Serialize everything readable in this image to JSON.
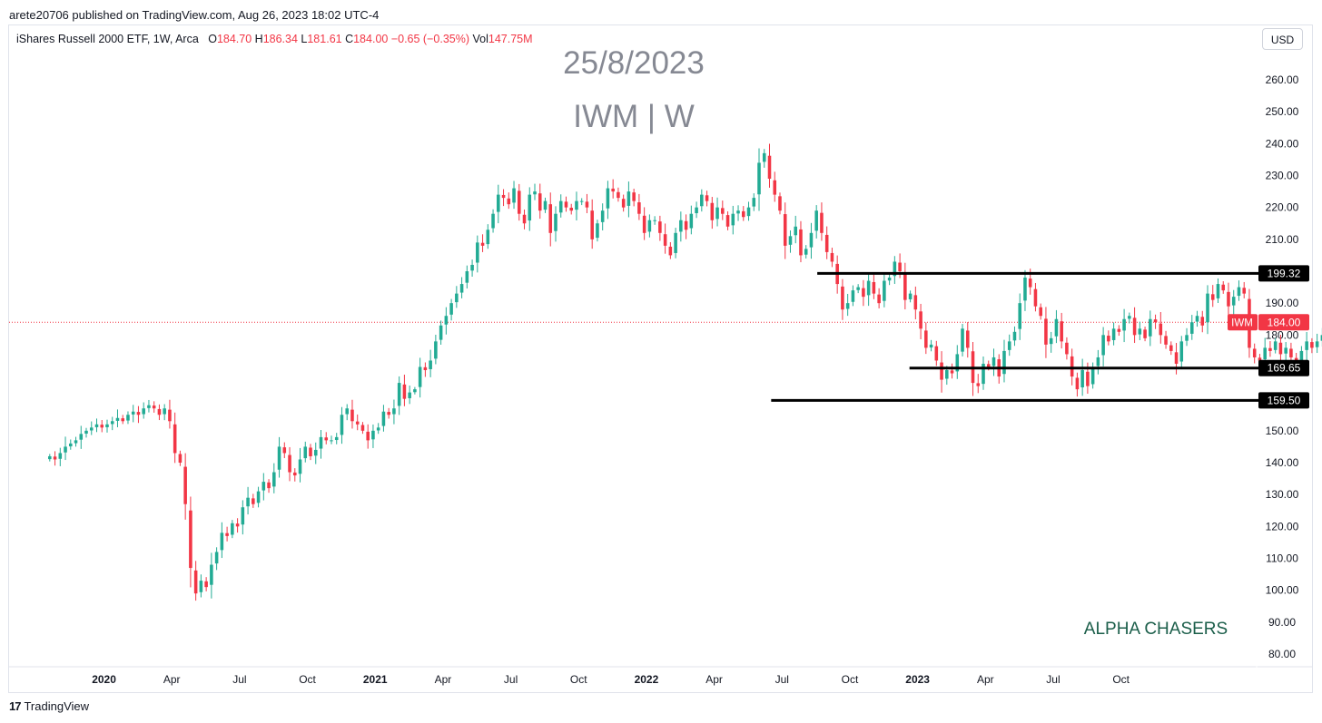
{
  "publish_line": "arete20706 published on TradingView.com, Aug 26, 2023 18:02 UTC-4",
  "legend": {
    "symbol": "iShares Russell 2000 ETF, 1W, Arca",
    "o_label": "O",
    "o": "184.70",
    "h_label": "H",
    "h": "186.34",
    "l_label": "L",
    "l": "181.61",
    "c_label": "C",
    "c": "184.00",
    "change": "−0.65 (−0.35%)",
    "vol_label": "Vol",
    "vol": "147.75M"
  },
  "currency_button": "USD",
  "footer_logo": "TradingView",
  "colors": {
    "up": "#22ab94",
    "down": "#f23645",
    "annotation": "#868993",
    "watermark": "#1b5e4a",
    "lines": "#000000"
  },
  "chart_data": {
    "type": "candlestick",
    "symbol": "IWM",
    "timeframe": "1W",
    "title": "25/8/2023",
    "subtitle": "IWM | W",
    "watermark": "ALPHA CHASERS",
    "ylim": [
      78,
      268
    ],
    "y_ticks": [
      80,
      90,
      100,
      110,
      120,
      130,
      140,
      150,
      160,
      170,
      180,
      190,
      200,
      210,
      220,
      230,
      240,
      250,
      260
    ],
    "x_ticks": [
      {
        "label": "2020",
        "t": 0,
        "bold": true
      },
      {
        "label": "Apr",
        "t": 0.25
      },
      {
        "label": "Jul",
        "t": 0.5
      },
      {
        "label": "Oct",
        "t": 0.75
      },
      {
        "label": "2021",
        "t": 1,
        "bold": true
      },
      {
        "label": "Apr",
        "t": 1.25
      },
      {
        "label": "Jul",
        "t": 1.5
      },
      {
        "label": "Oct",
        "t": 1.75
      },
      {
        "label": "2022",
        "t": 2,
        "bold": true
      },
      {
        "label": "Apr",
        "t": 2.25
      },
      {
        "label": "Jul",
        "t": 2.5
      },
      {
        "label": "Oct",
        "t": 2.75
      },
      {
        "label": "2023",
        "t": 3,
        "bold": true
      },
      {
        "label": "Apr",
        "t": 3.25
      },
      {
        "label": "Jul",
        "t": 3.5
      },
      {
        "label": "Oct",
        "t": 3.75
      }
    ],
    "x_range": [
      -0.35,
      4.25
    ],
    "t_start": -0.2,
    "price_label": {
      "symbol": "IWM",
      "value": 184.0
    },
    "horizontal_lines": [
      {
        "value": 199.32,
        "label": "199.32",
        "t_start": 2.63
      },
      {
        "value": 169.65,
        "label": "169.65",
        "t_start": 2.97
      },
      {
        "value": 159.5,
        "label": "159.50",
        "t_start": 2.46
      }
    ],
    "closes": [
      142,
      141,
      143,
      145,
      146,
      147,
      149,
      150,
      151,
      152,
      151,
      152,
      153,
      154,
      153,
      155,
      156,
      155,
      157,
      158,
      157,
      155,
      157,
      153,
      143,
      140,
      127,
      107,
      99,
      103,
      101,
      108,
      112,
      118,
      117,
      121,
      120,
      126,
      129,
      127,
      131,
      134,
      132,
      137,
      145,
      143,
      137,
      136,
      141,
      145,
      142,
      144,
      148,
      147,
      147,
      148,
      155,
      157,
      153,
      152,
      150,
      147,
      150,
      151,
      156,
      155,
      157,
      165,
      160,
      162,
      163,
      170,
      169,
      172,
      178,
      183,
      186,
      190,
      193,
      196,
      200,
      202,
      209,
      208,
      213,
      218,
      224,
      223,
      221,
      226,
      218,
      215,
      224,
      225,
      219,
      222,
      212,
      218,
      222,
      220,
      219,
      222,
      222,
      220,
      210,
      215,
      219,
      226,
      225,
      223,
      220,
      225,
      222,
      218,
      212,
      216,
      216,
      212,
      208,
      205,
      212,
      216,
      213,
      218,
      220,
      224,
      222,
      216,
      220,
      218,
      214,
      218,
      219,
      217,
      220,
      223,
      234,
      237,
      229,
      224,
      219,
      208,
      211,
      214,
      205,
      207,
      212,
      219,
      212,
      206,
      203,
      196,
      188,
      190,
      194,
      195,
      192,
      197,
      193,
      190,
      197,
      198,
      203,
      200,
      191,
      193,
      188,
      182,
      176,
      177,
      172,
      166,
      169,
      168,
      174,
      182,
      176,
      165,
      164,
      171,
      170,
      173,
      167,
      175,
      178,
      181,
      190,
      198,
      195,
      189,
      186,
      177,
      179,
      185,
      178,
      174,
      167,
      163,
      169,
      164,
      170,
      173,
      180,
      178,
      182,
      181,
      185,
      186,
      180,
      182,
      179,
      185,
      184,
      180,
      177,
      175,
      171,
      178,
      180,
      184,
      186,
      183,
      193,
      191,
      196,
      194,
      189,
      192,
      195,
      193,
      176,
      173,
      172,
      176,
      175,
      178,
      174,
      176,
      173,
      171,
      175,
      178,
      176,
      178,
      180,
      182,
      187,
      188,
      190,
      185,
      182,
      189,
      190,
      191,
      193,
      196,
      198,
      197,
      192,
      190,
      184.7,
      184
    ],
    "annotations": [
      "25/8/2023",
      "IWM | W",
      "ALPHA CHASERS"
    ]
  }
}
